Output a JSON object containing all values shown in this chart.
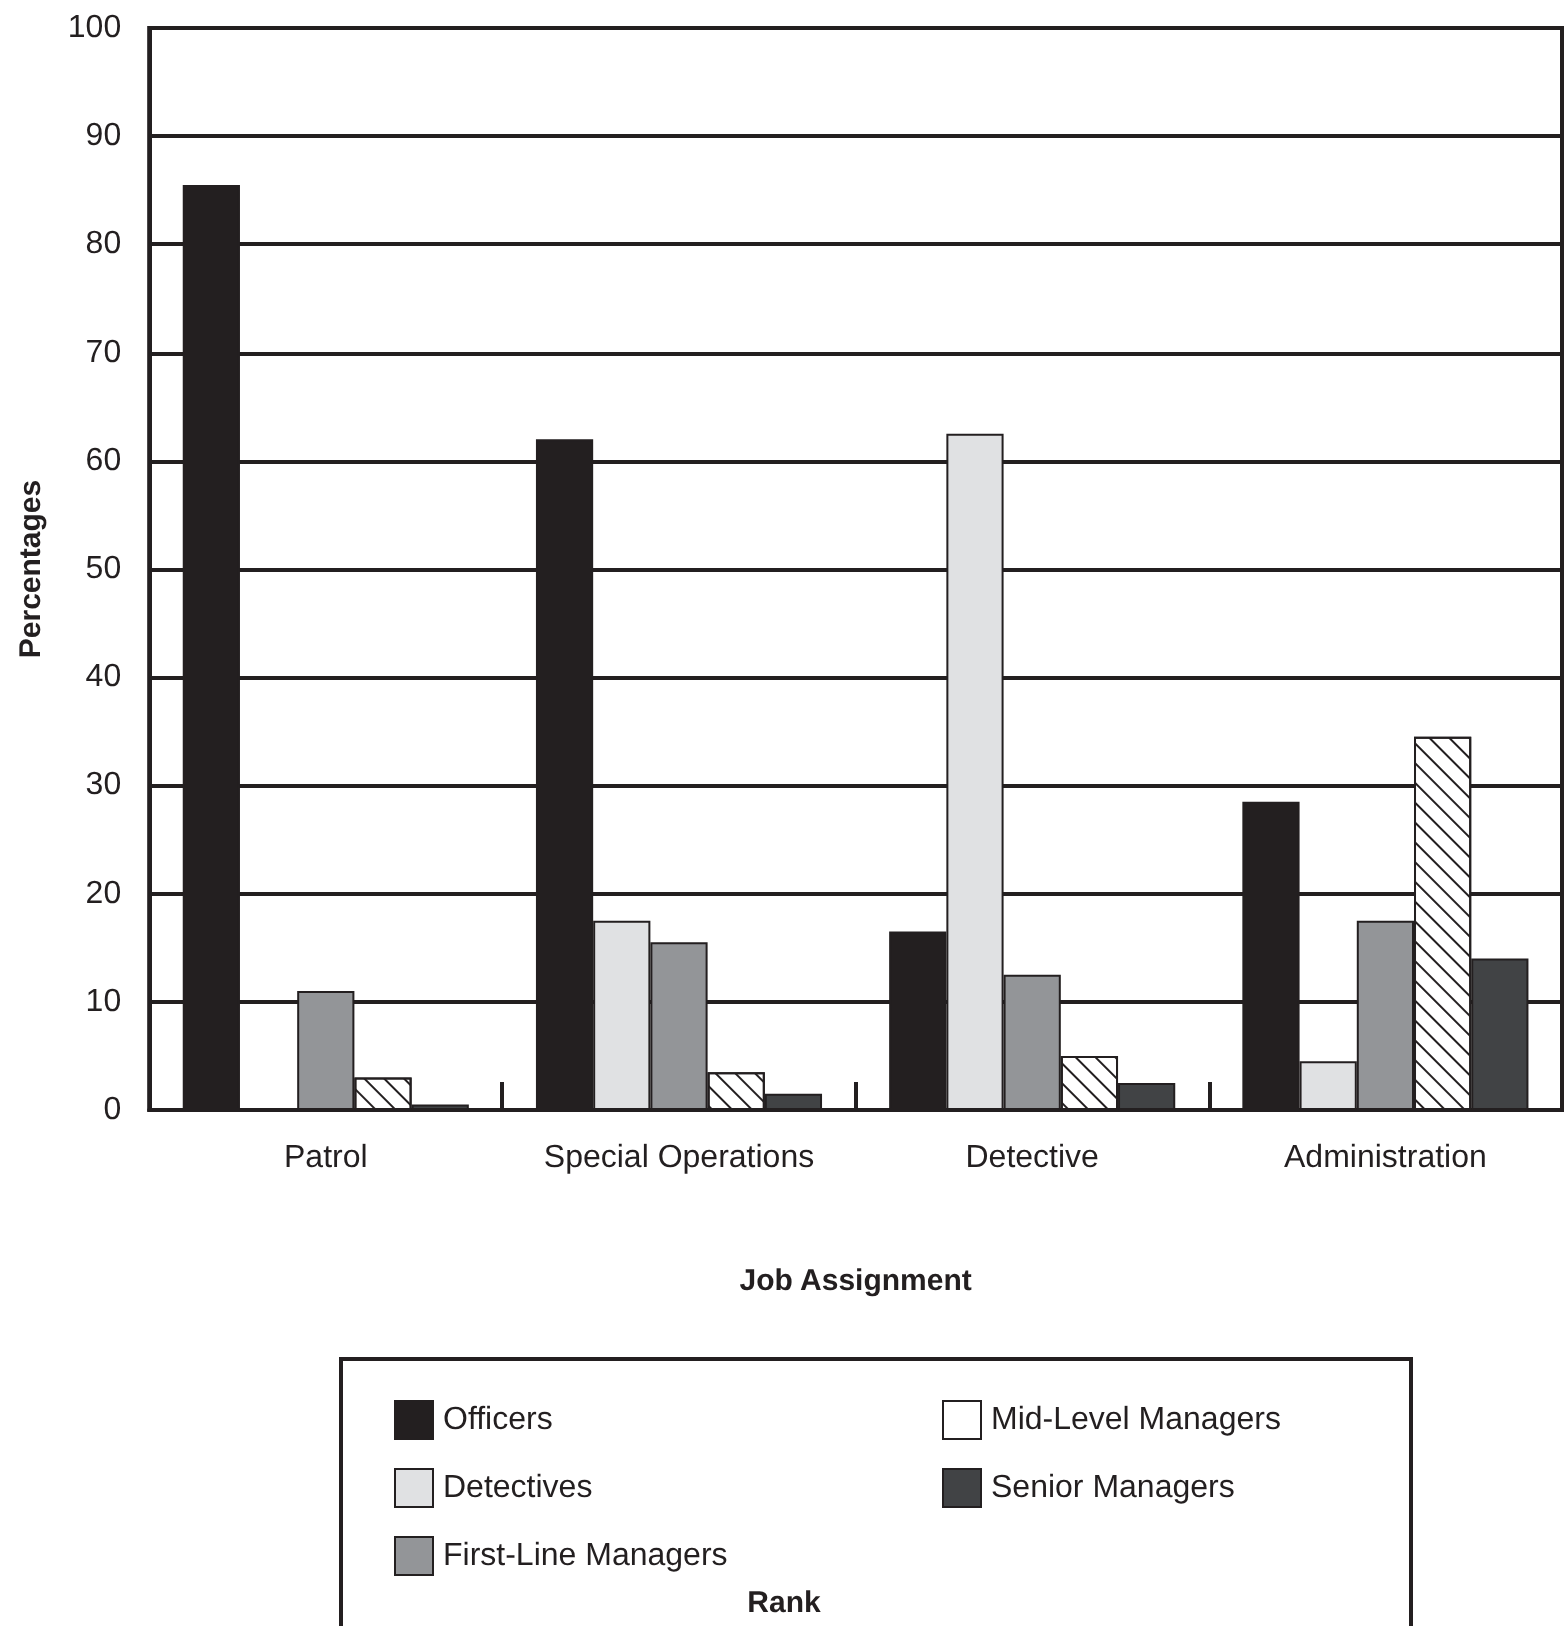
{
  "chart_data": {
    "type": "bar",
    "xlabel": "Job Assignment",
    "ylabel": "Percentages",
    "legend_title": "Rank",
    "categories": [
      "Patrol",
      "Special Operations",
      "Detective",
      "Administration"
    ],
    "series": [
      {
        "name": "Officers",
        "color": "#231f20",
        "values": [
          85.5,
          62,
          16.5,
          28.5
        ]
      },
      {
        "name": "Detectives",
        "color": "#e0e1e3",
        "values": [
          0,
          17.5,
          62.5,
          4.5
        ]
      },
      {
        "name": "First-Line Managers",
        "color": "#939598",
        "values": [
          11,
          15.5,
          12.5,
          17.5
        ]
      },
      {
        "name": "Mid-Level Managers",
        "color": "#ffffff",
        "values": [
          3,
          3.5,
          5,
          34.5
        ]
      },
      {
        "name": "Senior Managers",
        "color": "#414345",
        "values": [
          0.5,
          1.5,
          2.5,
          14
        ]
      }
    ],
    "ylim": [
      0,
      100
    ],
    "yticks": [
      0,
      10,
      20,
      30,
      40,
      50,
      60,
      70,
      80,
      90,
      100
    ],
    "grid": "y",
    "legend": "bottom"
  }
}
